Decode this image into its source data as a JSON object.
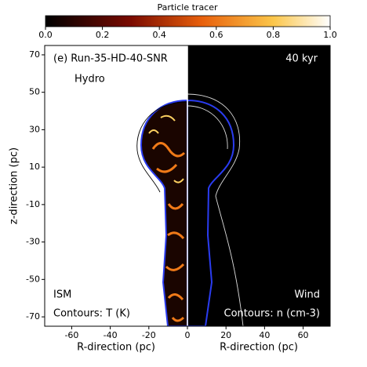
{
  "chart_data": {
    "type": "image",
    "colorbar": {
      "label": "Particle tracer",
      "lim": [
        0,
        1
      ],
      "ticks": [
        {
          "value": 0,
          "label": "0.0"
        },
        0.2,
        0.4,
        0.6,
        0.8,
        {
          "value": 1,
          "label": "1.0"
        }
      ]
    },
    "xlabel_left": "R-direction (pc)",
    "xlabel_right": "R-direction (pc)",
    "ylabel": "z-direction (pc)",
    "xlim": [
      -74,
      74
    ],
    "xticks": [
      -60,
      -40,
      -20,
      0,
      20,
      40,
      60
    ],
    "ylim": [
      -75,
      75
    ],
    "yticks": [
      70,
      50,
      30,
      10,
      -10,
      -30,
      -50,
      -70
    ],
    "annotations": [
      "(e) Run-35-HD-40-SNR",
      "40 kyr",
      "Hydro",
      "ISM",
      "Wind",
      "Contours: T (K)",
      "Contours: n (cm-3)"
    ]
  }
}
